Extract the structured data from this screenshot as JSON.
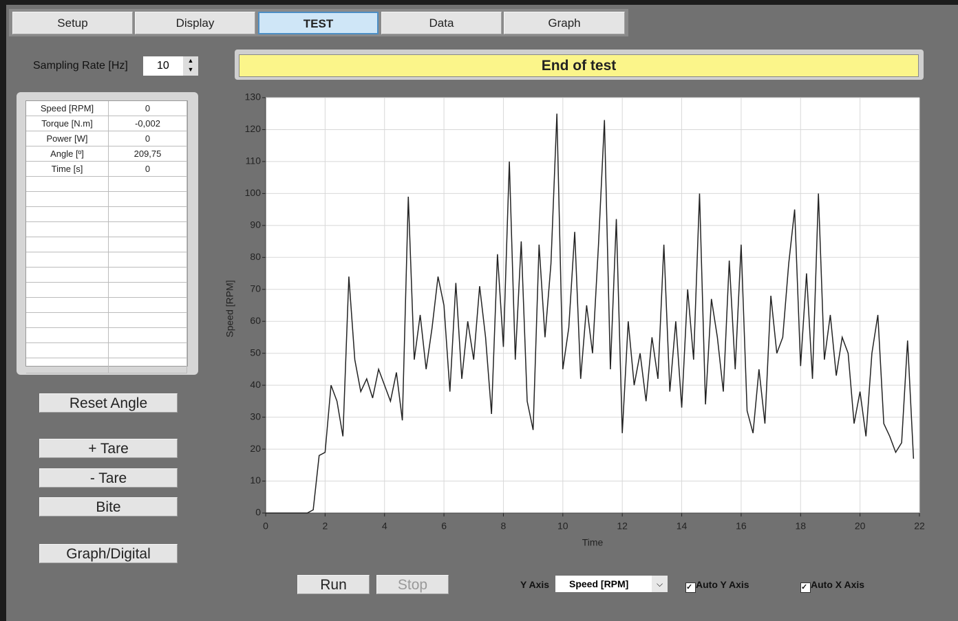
{
  "tabs": [
    "Setup",
    "Display",
    "TEST",
    "Data",
    "Graph"
  ],
  "sampling_rate": {
    "label": "Sampling Rate [Hz]",
    "value": "10"
  },
  "readings": {
    "rows": [
      [
        "Speed [RPM]",
        "0"
      ],
      [
        "Torque [N.m]",
        "-0,002"
      ],
      [
        "Power [W]",
        "0"
      ],
      [
        "Angle [º]",
        "209,75"
      ],
      [
        "Time [s]",
        "0"
      ]
    ]
  },
  "buttons": [
    "Reset Angle",
    "+ Tare",
    "- Tare",
    "Bite",
    "Graph/Digital"
  ],
  "status": "End of test",
  "chart_data": {
    "type": "line",
    "x_label": "Time",
    "y_label": "Speed [RPM]",
    "color": "#222222",
    "grid": true,
    "xlim": [
      0,
      22
    ],
    "xticks": [
      0,
      2,
      4,
      6,
      8,
      10,
      12,
      14,
      16,
      18,
      20,
      22
    ],
    "ylim": [
      0,
      130
    ],
    "yticks": [
      0,
      10,
      20,
      30,
      40,
      50,
      60,
      70,
      80,
      90,
      100,
      110,
      120,
      130
    ],
    "x": [
      0,
      0.2,
      0.4,
      0.6,
      0.8,
      1.0,
      1.2,
      1.4,
      1.6,
      1.8,
      2.0,
      2.2,
      2.4,
      2.6,
      2.8,
      3.0,
      3.2,
      3.4,
      3.6,
      3.8,
      4.0,
      4.2,
      4.4,
      4.6,
      4.8,
      5.0,
      5.2,
      5.4,
      5.6,
      5.8,
      6.0,
      6.2,
      6.4,
      6.6,
      6.8,
      7.0,
      7.2,
      7.4,
      7.6,
      7.8,
      8.0,
      8.2,
      8.4,
      8.6,
      8.8,
      9.0,
      9.2,
      9.4,
      9.6,
      9.8,
      10.0,
      10.2,
      10.4,
      10.6,
      10.8,
      11.0,
      11.2,
      11.4,
      11.6,
      11.8,
      12.0,
      12.2,
      12.4,
      12.6,
      12.8,
      13.0,
      13.2,
      13.4,
      13.6,
      13.8,
      14.0,
      14.2,
      14.4,
      14.6,
      14.8,
      15.0,
      15.2,
      15.4,
      15.6,
      15.8,
      16.0,
      16.2,
      16.4,
      16.6,
      16.8,
      17.0,
      17.2,
      17.4,
      17.6,
      17.8,
      18.0,
      18.2,
      18.4,
      18.6,
      18.8,
      19.0,
      19.2,
      19.4,
      19.6,
      19.8,
      20.0,
      20.2,
      20.4,
      20.6,
      20.8,
      21.0,
      21.2,
      21.4,
      21.6,
      21.8
    ],
    "values": [
      0,
      0,
      0,
      0,
      0,
      0,
      0,
      0,
      1,
      18,
      19,
      40,
      35,
      24,
      74,
      48,
      38,
      42,
      36,
      45,
      40,
      35,
      44,
      29,
      99,
      48,
      62,
      45,
      58,
      74,
      65,
      38,
      72,
      42,
      60,
      48,
      71,
      55,
      31,
      81,
      52,
      110,
      48,
      85,
      35,
      26,
      84,
      55,
      78,
      125,
      45,
      58,
      88,
      42,
      65,
      50,
      84,
      123,
      45,
      92,
      25,
      60,
      40,
      50,
      35,
      55,
      42,
      84,
      38,
      60,
      33,
      70,
      48,
      100,
      34,
      67,
      55,
      38,
      79,
      45,
      84,
      32,
      25,
      45,
      28,
      68,
      50,
      55,
      78,
      95,
      46,
      75,
      42,
      100,
      48,
      62,
      43,
      55,
      50,
      28,
      38,
      24,
      50,
      62,
      28,
      24,
      19,
      22,
      54,
      17
    ]
  },
  "controls": {
    "run": "Run",
    "stop": "Stop",
    "y_axis_label": "Y Axis",
    "y_axis_select": "Speed [RPM]",
    "auto_y": "Auto Y Axis",
    "auto_x": "Auto X Axis"
  }
}
